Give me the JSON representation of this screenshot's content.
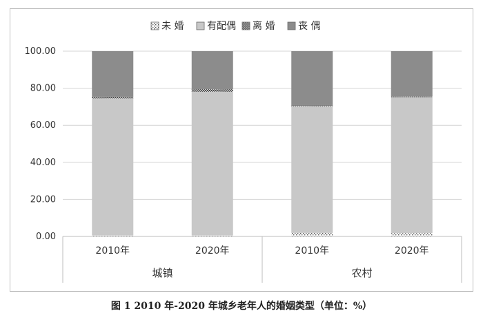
{
  "caption": "图 1   2010 年-2020 年城乡老年人的婚姻类型（单位：%）",
  "chart_data": {
    "type": "bar",
    "stacked": true,
    "groups": [
      {
        "name": "城镇",
        "categories": [
          "2010年",
          "2020年"
        ]
      },
      {
        "name": "农村",
        "categories": [
          "2010年",
          "2020年"
        ]
      }
    ],
    "categories": [
      "2010年",
      "2020年",
      "2010年",
      "2020年"
    ],
    "series": [
      {
        "name": "未 婚",
        "values": [
          0.5,
          0.5,
          1.9,
          1.8
        ],
        "color": "#ffffff",
        "pattern": "dots"
      },
      {
        "name": "有配偶",
        "values": [
          74.0,
          77.6,
          68.4,
          73.3
        ],
        "color": "#c8c8c8",
        "pattern": "solid"
      },
      {
        "name": "离 婚",
        "values": [
          0.9,
          1.3,
          0.6,
          0.4
        ],
        "color": "#404040",
        "pattern": "checker"
      },
      {
        "name": "丧 偶",
        "values": [
          24.6,
          20.6,
          29.1,
          24.5
        ],
        "color": "#8c8c8c",
        "pattern": "solid"
      }
    ],
    "ylim": [
      0,
      100
    ],
    "yticks": [
      "0.00",
      "20.00",
      "40.00",
      "60.00",
      "80.00",
      "100.00"
    ],
    "grid": true,
    "legend": "top"
  }
}
